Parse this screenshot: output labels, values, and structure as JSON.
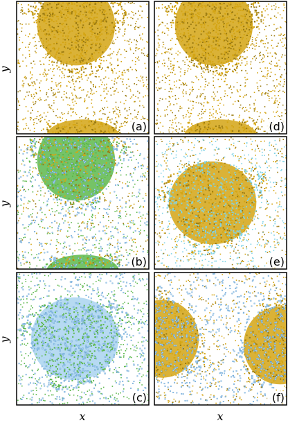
{
  "figure": {
    "x_axis_label": "x",
    "y_axis_label": "y",
    "colors": {
      "gold": "#d4a514",
      "gold_dark": "#9a7a10",
      "green": "#5db84c",
      "light_blue": "#a9d3f0",
      "blue_outline": "#4f8fc8",
      "cyan": "#7fd3e6",
      "frame": "#000000"
    },
    "panels": [
      {
        "label": "(a)",
        "species": [
          "gold"
        ],
        "blobs": "two-top-bottom"
      },
      {
        "label": "(b)",
        "species": [
          "green",
          "light_blue",
          "gold"
        ],
        "blobs": "two-top-bottom"
      },
      {
        "label": "(c)",
        "species": [
          "light_blue",
          "green"
        ],
        "blobs": "one-center"
      },
      {
        "label": "(d)",
        "species": [
          "gold"
        ],
        "blobs": "two-top-bottom"
      },
      {
        "label": "(e)",
        "species": [
          "gold",
          "cyan"
        ],
        "blobs": "one-center"
      },
      {
        "label": "(f)",
        "species": [
          "gold",
          "light_blue"
        ],
        "blobs": "two-left-right"
      }
    ]
  }
}
